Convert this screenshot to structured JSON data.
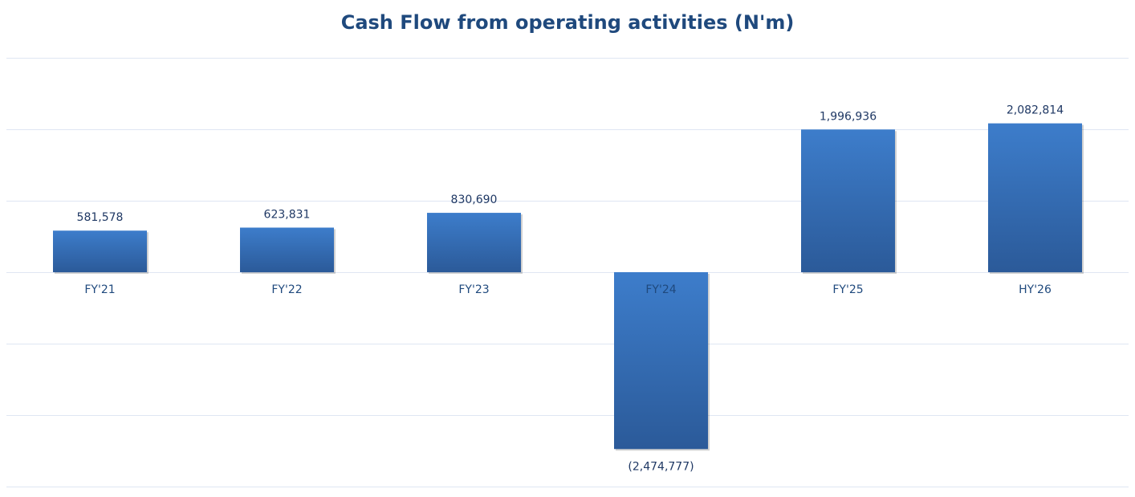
{
  "chart_data": {
    "type": "bar",
    "title": "Cash Flow from operating activities (N'm)",
    "categories": [
      "FY'21",
      "FY'22",
      "FY'23",
      "FY'24",
      "FY'25",
      "HY'26"
    ],
    "values": [
      581578,
      623831,
      830690,
      -2474777,
      1996936,
      2082814
    ],
    "data_labels": [
      "581,578",
      "623,831",
      "830,690",
      "(2,474,777)",
      "1,996,936",
      "2,082,814"
    ],
    "ylim": [
      -3000000,
      3000000
    ],
    "y_grid_step": 1000000,
    "grid": true,
    "xlabel": "",
    "ylabel": "",
    "colors": {
      "title": "#1f497d",
      "bar_top": "#3d7dcb",
      "bar_bottom": "#2b5a99",
      "grid": "#dfe6f3",
      "tick_label": "#1f497d",
      "data_label": "#1f3864"
    }
  }
}
